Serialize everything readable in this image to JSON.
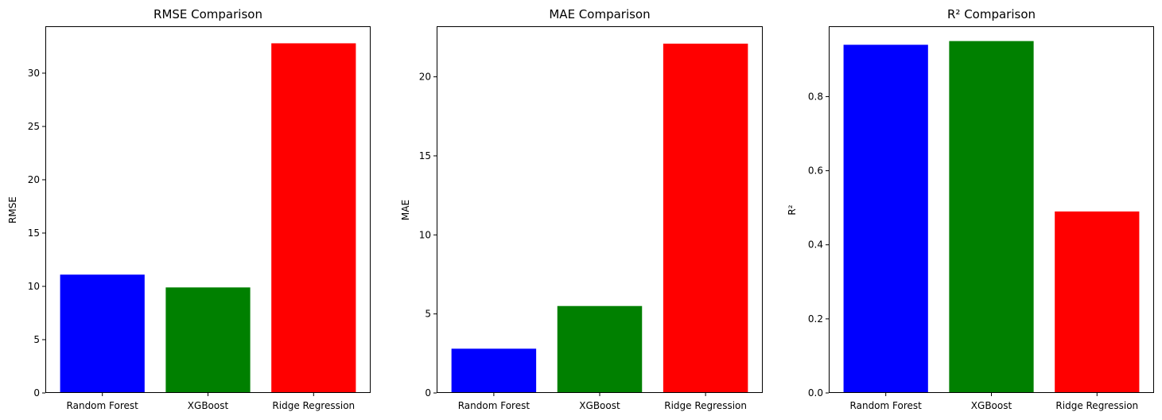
{
  "chart_data": [
    {
      "type": "bar",
      "title": "RMSE Comparison",
      "xlabel": "",
      "ylabel": "RMSE",
      "categories": [
        "Random Forest",
        "XGBoost",
        "Ridge Regression"
      ],
      "values": [
        11.1,
        9.9,
        32.8
      ],
      "colors": [
        "#0000ff",
        "#008000",
        "#ff0000"
      ],
      "ylim": [
        0,
        34.4
      ],
      "yticks": [
        0,
        5,
        10,
        15,
        20,
        25,
        30
      ],
      "ytick_labels": [
        "0",
        "5",
        "10",
        "15",
        "20",
        "25",
        "30"
      ],
      "grid": false,
      "legend": "none"
    },
    {
      "type": "bar",
      "title": "MAE Comparison",
      "xlabel": "",
      "ylabel": "MAE",
      "categories": [
        "Random Forest",
        "XGBoost",
        "Ridge Regression"
      ],
      "values": [
        2.8,
        5.5,
        22.1
      ],
      "colors": [
        "#0000ff",
        "#008000",
        "#ff0000"
      ],
      "ylim": [
        0,
        23.2
      ],
      "yticks": [
        0,
        5,
        10,
        15,
        20
      ],
      "ytick_labels": [
        "0",
        "5",
        "10",
        "15",
        "20"
      ],
      "grid": false,
      "legend": "none"
    },
    {
      "type": "bar",
      "title": "R² Comparison",
      "xlabel": "",
      "ylabel": "R²",
      "categories": [
        "Random Forest",
        "XGBoost",
        "Ridge Regression"
      ],
      "values": [
        0.94,
        0.95,
        0.49
      ],
      "colors": [
        "#0000ff",
        "#008000",
        "#ff0000"
      ],
      "ylim": [
        0,
        0.99
      ],
      "yticks": [
        0,
        0.2,
        0.4,
        0.6,
        0.8
      ],
      "ytick_labels": [
        "0.0",
        "0.2",
        "0.4",
        "0.6",
        "0.8"
      ],
      "grid": false,
      "legend": "none"
    }
  ]
}
